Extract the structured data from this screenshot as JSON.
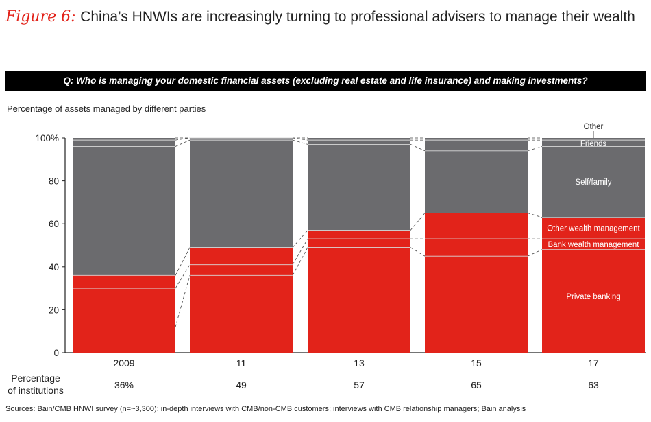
{
  "figure": {
    "label": "Figure 6:",
    "title": "China’s HNWIs are increasingly turning to professional advisers to manage their wealth"
  },
  "question": "Q: Who is managing your domestic financial assets (excluding real estate and life insurance) and making investments?",
  "subtitle": "Percentage of assets managed by different parties",
  "source": "Sources: Bain/CMB HNWI survey (n=~3,300); in-depth interviews with CMB/non-CMB customers; interviews with CMB relationship managers; Bain analysis",
  "colors": {
    "professional": "#e2231a",
    "nonprofessional": "#6b6b6e",
    "divider": "#d9d9d9"
  },
  "chart_data": {
    "type": "bar",
    "stacked": true,
    "categories": [
      "2009",
      "11",
      "13",
      "15",
      "17"
    ],
    "ylim": [
      0,
      100
    ],
    "yticks": [
      0,
      20,
      40,
      60,
      80,
      100
    ],
    "ytick_labels": [
      "0",
      "20",
      "40",
      "60",
      "80",
      "100%"
    ],
    "series": [
      {
        "name": "Private banking",
        "values": [
          12,
          36,
          49,
          45,
          48
        ],
        "group": "professional"
      },
      {
        "name": "Bank wealth management",
        "values": [
          18,
          5,
          4,
          8,
          5
        ],
        "group": "professional"
      },
      {
        "name": "Other wealth management",
        "values": [
          6,
          8,
          4,
          12,
          10
        ],
        "group": "professional"
      },
      {
        "name": "Self/family",
        "values": [
          60,
          50,
          40,
          29,
          33
        ],
        "group": "nonprofessional"
      },
      {
        "name": "Friends",
        "values": [
          3,
          1,
          2,
          5,
          3
        ],
        "group": "nonprofessional"
      },
      {
        "name": "Other",
        "values": [
          1,
          0,
          1,
          1,
          1
        ],
        "group": "nonprofessional"
      }
    ],
    "institutions_label": "Percentage\nof institutions",
    "institutions_label_lines": [
      "Percentage",
      "of institutions"
    ],
    "institutions_values": [
      "36%",
      "49",
      "57",
      "65",
      "63"
    ]
  }
}
